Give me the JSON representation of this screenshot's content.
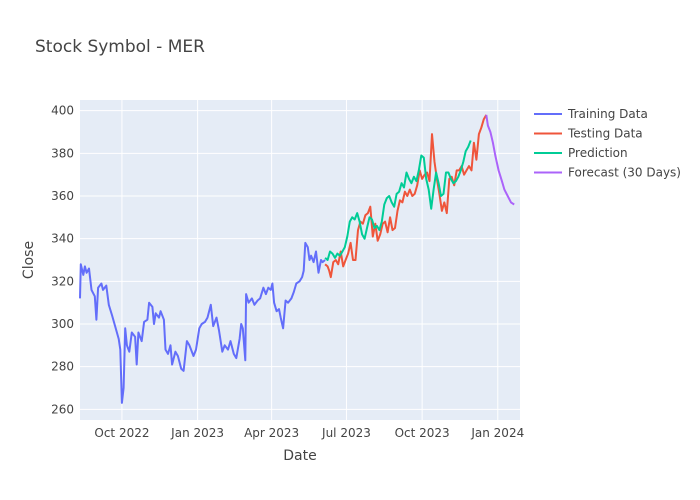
{
  "chart_data": {
    "type": "line",
    "title": "Stock Symbol - MER",
    "xlabel": "Date",
    "ylabel": "Close",
    "x_range": [
      "2022-08-11",
      "2024-01-28"
    ],
    "ylim": [
      255,
      405
    ],
    "x_ticks": [
      {
        "date": "2022-10-01",
        "label": "Oct 2022"
      },
      {
        "date": "2023-01-01",
        "label": "Jan 2023"
      },
      {
        "date": "2023-04-01",
        "label": "Apr 2023"
      },
      {
        "date": "2023-07-01",
        "label": "Jul 2023"
      },
      {
        "date": "2023-10-01",
        "label": "Oct 2023"
      },
      {
        "date": "2024-01-01",
        "label": "Jan 2024"
      }
    ],
    "y_ticks": [
      260,
      280,
      300,
      320,
      340,
      360,
      380,
      400
    ],
    "grid": true,
    "legend_position": "top-right",
    "background_color": "#e5ecf6",
    "series": [
      {
        "name": "Training Data",
        "color": "#636efa",
        "points": [
          [
            "2022-08-11",
            312
          ],
          [
            "2022-08-12",
            328
          ],
          [
            "2022-08-15",
            323
          ],
          [
            "2022-08-17",
            327
          ],
          [
            "2022-08-19",
            324
          ],
          [
            "2022-08-22",
            326
          ],
          [
            "2022-08-25",
            316
          ],
          [
            "2022-08-29",
            313
          ],
          [
            "2022-08-31",
            302
          ],
          [
            "2022-09-02",
            317
          ],
          [
            "2022-09-06",
            319
          ],
          [
            "2022-09-08",
            316
          ],
          [
            "2022-09-12",
            318
          ],
          [
            "2022-09-15",
            309
          ],
          [
            "2022-09-19",
            304
          ],
          [
            "2022-09-22",
            300
          ],
          [
            "2022-09-27",
            293
          ],
          [
            "2022-09-29",
            288
          ],
          [
            "2022-10-01",
            263
          ],
          [
            "2022-10-03",
            270
          ],
          [
            "2022-10-05",
            298
          ],
          [
            "2022-10-07",
            290
          ],
          [
            "2022-10-10",
            287
          ],
          [
            "2022-10-13",
            296
          ],
          [
            "2022-10-17",
            294
          ],
          [
            "2022-10-19",
            281
          ],
          [
            "2022-10-21",
            296
          ],
          [
            "2022-10-25",
            292
          ],
          [
            "2022-10-28",
            301
          ],
          [
            "2022-11-01",
            302
          ],
          [
            "2022-11-03",
            310
          ],
          [
            "2022-11-07",
            308
          ],
          [
            "2022-11-09",
            300
          ],
          [
            "2022-11-11",
            305
          ],
          [
            "2022-11-15",
            303
          ],
          [
            "2022-11-17",
            306
          ],
          [
            "2022-11-21",
            302
          ],
          [
            "2022-11-23",
            288
          ],
          [
            "2022-11-26",
            286
          ],
          [
            "2022-11-29",
            290
          ],
          [
            "2022-12-01",
            281
          ],
          [
            "2022-12-05",
            287
          ],
          [
            "2022-12-08",
            285
          ],
          [
            "2022-12-12",
            279
          ],
          [
            "2022-12-15",
            278
          ],
          [
            "2022-12-19",
            292
          ],
          [
            "2022-12-22",
            290
          ],
          [
            "2022-12-27",
            285
          ],
          [
            "2022-12-30",
            288
          ],
          [
            "2023-01-03",
            298
          ],
          [
            "2023-01-06",
            300
          ],
          [
            "2023-01-10",
            301
          ],
          [
            "2023-01-13",
            303
          ],
          [
            "2023-01-17",
            309
          ],
          [
            "2023-01-20",
            299
          ],
          [
            "2023-01-24",
            303
          ],
          [
            "2023-01-27",
            297
          ],
          [
            "2023-01-31",
            287
          ],
          [
            "2023-02-03",
            290
          ],
          [
            "2023-02-07",
            288
          ],
          [
            "2023-02-10",
            292
          ],
          [
            "2023-02-14",
            286
          ],
          [
            "2023-02-17",
            284
          ],
          [
            "2023-02-21",
            293
          ],
          [
            "2023-02-23",
            300
          ],
          [
            "2023-02-25",
            298
          ],
          [
            "2023-02-28",
            283
          ],
          [
            "2023-03-01",
            314
          ],
          [
            "2023-03-04",
            310
          ],
          [
            "2023-03-08",
            312
          ],
          [
            "2023-03-11",
            309
          ],
          [
            "2023-03-15",
            311
          ],
          [
            "2023-03-18",
            312
          ],
          [
            "2023-03-22",
            317
          ],
          [
            "2023-03-25",
            314
          ],
          [
            "2023-03-28",
            317
          ],
          [
            "2023-03-31",
            316
          ],
          [
            "2023-04-02",
            319
          ],
          [
            "2023-04-04",
            310
          ],
          [
            "2023-04-07",
            306
          ],
          [
            "2023-04-10",
            307
          ],
          [
            "2023-04-12",
            303
          ],
          [
            "2023-04-15",
            298
          ],
          [
            "2023-04-18",
            311
          ],
          [
            "2023-04-21",
            310
          ],
          [
            "2023-04-25",
            312
          ],
          [
            "2023-04-28",
            315
          ],
          [
            "2023-05-01",
            319
          ],
          [
            "2023-05-05",
            320
          ],
          [
            "2023-05-08",
            322
          ],
          [
            "2023-05-10",
            325
          ],
          [
            "2023-05-12",
            338
          ],
          [
            "2023-05-15",
            336
          ],
          [
            "2023-05-17",
            330
          ],
          [
            "2023-05-19",
            332
          ],
          [
            "2023-05-22",
            329
          ],
          [
            "2023-05-25",
            334
          ],
          [
            "2023-05-28",
            324
          ],
          [
            "2023-05-31",
            330
          ],
          [
            "2023-06-02",
            329
          ],
          [
            "2023-06-05",
            330
          ]
        ]
      },
      {
        "name": "Testing Data",
        "color": "#ef553b",
        "points": [
          [
            "2023-06-05",
            328
          ],
          [
            "2023-06-08",
            327
          ],
          [
            "2023-06-10",
            325
          ],
          [
            "2023-06-12",
            322
          ],
          [
            "2023-06-15",
            329
          ],
          [
            "2023-06-18",
            330
          ],
          [
            "2023-06-21",
            328
          ],
          [
            "2023-06-24",
            334
          ],
          [
            "2023-06-27",
            327
          ],
          [
            "2023-06-30",
            330
          ],
          [
            "2023-07-03",
            333
          ],
          [
            "2023-07-06",
            338
          ],
          [
            "2023-07-09",
            330
          ],
          [
            "2023-07-12",
            330
          ],
          [
            "2023-07-15",
            344
          ],
          [
            "2023-07-18",
            348
          ],
          [
            "2023-07-21",
            347
          ],
          [
            "2023-07-24",
            351
          ],
          [
            "2023-07-27",
            352
          ],
          [
            "2023-07-30",
            355
          ],
          [
            "2023-08-02",
            341
          ],
          [
            "2023-08-05",
            347
          ],
          [
            "2023-08-08",
            339
          ],
          [
            "2023-08-11",
            342
          ],
          [
            "2023-08-14",
            347
          ],
          [
            "2023-08-17",
            348
          ],
          [
            "2023-08-20",
            343
          ],
          [
            "2023-08-23",
            350
          ],
          [
            "2023-08-26",
            344
          ],
          [
            "2023-08-29",
            345
          ],
          [
            "2023-09-01",
            353
          ],
          [
            "2023-09-04",
            358
          ],
          [
            "2023-09-07",
            357
          ],
          [
            "2023-09-10",
            362
          ],
          [
            "2023-09-13",
            360
          ],
          [
            "2023-09-16",
            363
          ],
          [
            "2023-09-19",
            360
          ],
          [
            "2023-09-22",
            361
          ],
          [
            "2023-09-25",
            365
          ],
          [
            "2023-09-28",
            372
          ],
          [
            "2023-10-01",
            368
          ],
          [
            "2023-10-04",
            370
          ],
          [
            "2023-10-07",
            371
          ],
          [
            "2023-10-10",
            367
          ],
          [
            "2023-10-13",
            389
          ],
          [
            "2023-10-16",
            376
          ],
          [
            "2023-10-19",
            368
          ],
          [
            "2023-10-22",
            361
          ],
          [
            "2023-10-25",
            353
          ],
          [
            "2023-10-28",
            357
          ],
          [
            "2023-10-31",
            352
          ],
          [
            "2023-11-03",
            368
          ],
          [
            "2023-11-06",
            369
          ],
          [
            "2023-11-09",
            365
          ],
          [
            "2023-11-12",
            372
          ],
          [
            "2023-11-15",
            372
          ],
          [
            "2023-11-18",
            374
          ],
          [
            "2023-11-21",
            370
          ],
          [
            "2023-11-24",
            372
          ],
          [
            "2023-11-27",
            374
          ],
          [
            "2023-11-30",
            372
          ],
          [
            "2023-12-03",
            385
          ],
          [
            "2023-12-06",
            377
          ],
          [
            "2023-12-09",
            389
          ],
          [
            "2023-12-12",
            392
          ],
          [
            "2023-12-15",
            396
          ],
          [
            "2023-12-18",
            398
          ]
        ]
      },
      {
        "name": "Prediction",
        "color": "#00cc96",
        "points": [
          [
            "2023-06-05",
            331
          ],
          [
            "2023-06-08",
            330
          ],
          [
            "2023-06-11",
            334
          ],
          [
            "2023-06-14",
            333
          ],
          [
            "2023-06-17",
            331
          ],
          [
            "2023-06-20",
            333
          ],
          [
            "2023-06-23",
            332
          ],
          [
            "2023-06-26",
            334
          ],
          [
            "2023-06-29",
            336
          ],
          [
            "2023-07-02",
            341
          ],
          [
            "2023-07-05",
            348
          ],
          [
            "2023-07-08",
            350
          ],
          [
            "2023-07-11",
            349
          ],
          [
            "2023-07-14",
            352
          ],
          [
            "2023-07-17",
            348
          ],
          [
            "2023-07-20",
            342
          ],
          [
            "2023-07-23",
            340
          ],
          [
            "2023-07-26",
            345
          ],
          [
            "2023-07-29",
            350
          ],
          [
            "2023-08-01",
            349
          ],
          [
            "2023-08-04",
            345
          ],
          [
            "2023-08-07",
            346
          ],
          [
            "2023-08-10",
            344
          ],
          [
            "2023-08-13",
            348
          ],
          [
            "2023-08-16",
            356
          ],
          [
            "2023-08-19",
            359
          ],
          [
            "2023-08-22",
            360
          ],
          [
            "2023-08-25",
            357
          ],
          [
            "2023-08-28",
            355
          ],
          [
            "2023-08-31",
            361
          ],
          [
            "2023-09-03",
            362
          ],
          [
            "2023-09-06",
            366
          ],
          [
            "2023-09-09",
            364
          ],
          [
            "2023-09-12",
            371
          ],
          [
            "2023-09-15",
            368
          ],
          [
            "2023-09-18",
            366
          ],
          [
            "2023-09-21",
            369
          ],
          [
            "2023-09-24",
            367
          ],
          [
            "2023-09-27",
            372
          ],
          [
            "2023-09-30",
            379
          ],
          [
            "2023-10-03",
            378
          ],
          [
            "2023-10-06",
            368
          ],
          [
            "2023-10-09",
            363
          ],
          [
            "2023-10-12",
            354
          ],
          [
            "2023-10-15",
            363
          ],
          [
            "2023-10-18",
            371
          ],
          [
            "2023-10-21",
            366
          ],
          [
            "2023-10-24",
            360
          ],
          [
            "2023-10-27",
            361
          ],
          [
            "2023-10-30",
            371
          ],
          [
            "2023-11-02",
            371
          ],
          [
            "2023-11-05",
            368
          ],
          [
            "2023-11-08",
            366
          ],
          [
            "2023-11-11",
            367
          ],
          [
            "2023-11-14",
            369
          ],
          [
            "2023-11-17",
            372
          ],
          [
            "2023-11-20",
            376
          ],
          [
            "2023-11-23",
            381
          ],
          [
            "2023-11-26",
            383
          ],
          [
            "2023-11-29",
            386
          ]
        ]
      },
      {
        "name": "Forecast (30 Days)",
        "color": "#ab63fa",
        "points": [
          [
            "2023-12-18",
            398
          ],
          [
            "2023-12-20",
            393
          ],
          [
            "2023-12-23",
            390
          ],
          [
            "2023-12-26",
            385
          ],
          [
            "2023-12-29",
            379
          ],
          [
            "2024-01-02",
            372
          ],
          [
            "2024-01-06",
            367
          ],
          [
            "2024-01-09",
            363
          ],
          [
            "2024-01-13",
            360
          ],
          [
            "2024-01-17",
            357
          ],
          [
            "2024-01-21",
            356
          ]
        ]
      }
    ]
  }
}
